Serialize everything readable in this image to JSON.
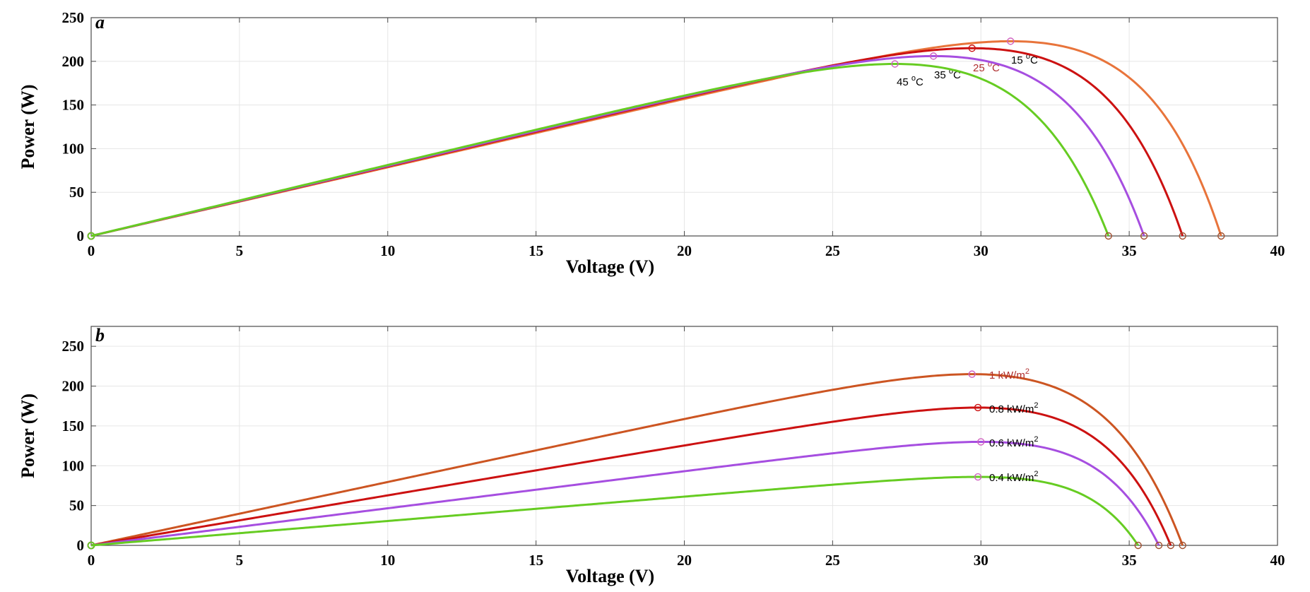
{
  "chart_data": [
    {
      "panel": "a",
      "type": "line",
      "xlabel": "Voltage (V)",
      "ylabel": "Power (W)",
      "xlim": [
        0,
        40
      ],
      "ylim": [
        0,
        250
      ],
      "xticks": [
        0,
        5,
        10,
        15,
        20,
        25,
        30,
        35,
        40
      ],
      "yticks": [
        0,
        50,
        100,
        150,
        200,
        250
      ],
      "grid": true,
      "series": [
        {
          "name": "15 °C",
          "color": "#e8743b",
          "voc": 38.1,
          "mpp": {
            "v": 31.0,
            "p": 223
          },
          "label_text": "15 ",
          "label_sup": "o",
          "label_unit": "C",
          "label_color": "#000000"
        },
        {
          "name": "25 °C",
          "color": "#cc1111",
          "voc": 36.8,
          "mpp": {
            "v": 29.7,
            "p": 215
          },
          "label_text": "25 ",
          "label_sup": "o",
          "label_unit": "C",
          "label_color": "#b03030"
        },
        {
          "name": "35 °C",
          "color": "#a64ee0",
          "voc": 35.5,
          "mpp": {
            "v": 28.4,
            "p": 206
          },
          "label_text": "35 ",
          "label_sup": "o",
          "label_unit": "C",
          "label_color": "#000000"
        },
        {
          "name": "45 °C",
          "color": "#66cc22",
          "voc": 34.3,
          "mpp": {
            "v": 27.1,
            "p": 197
          },
          "label_text": "45 ",
          "label_sup": "o",
          "label_unit": "C",
          "label_color": "#000000"
        }
      ]
    },
    {
      "panel": "b",
      "type": "line",
      "xlabel": "Voltage (V)",
      "ylabel": "Power (W)",
      "xlim": [
        0,
        40
      ],
      "ylim": [
        0,
        275
      ],
      "xticks": [
        0,
        5,
        10,
        15,
        20,
        25,
        30,
        35,
        40
      ],
      "yticks": [
        0,
        50,
        100,
        150,
        200,
        250
      ],
      "grid": true,
      "series": [
        {
          "name": "1 kW/m²",
          "color": "#cc5522",
          "voc": 36.8,
          "mpp": {
            "v": 29.7,
            "p": 215
          },
          "label_text": "1 kW/m",
          "label_sup": "2",
          "label_color": "#b03030"
        },
        {
          "name": "0.8 kW/m²",
          "color": "#cc1111",
          "voc": 36.4,
          "mpp": {
            "v": 29.9,
            "p": 173
          },
          "label_text": "0.8 kW/m",
          "label_sup": "2",
          "label_color": "#000000"
        },
        {
          "name": "0.6 kW/m²",
          "color": "#a64ee0",
          "voc": 36.0,
          "mpp": {
            "v": 30.0,
            "p": 130
          },
          "label_text": "0.6 kW/m",
          "label_sup": "2",
          "label_color": "#000000"
        },
        {
          "name": "0.4 kW/m²",
          "color": "#66cc22",
          "voc": 35.3,
          "mpp": {
            "v": 29.9,
            "p": 86
          },
          "label_text": "0.4 kW/m",
          "label_sup": "2",
          "label_color": "#000000"
        }
      ]
    }
  ]
}
